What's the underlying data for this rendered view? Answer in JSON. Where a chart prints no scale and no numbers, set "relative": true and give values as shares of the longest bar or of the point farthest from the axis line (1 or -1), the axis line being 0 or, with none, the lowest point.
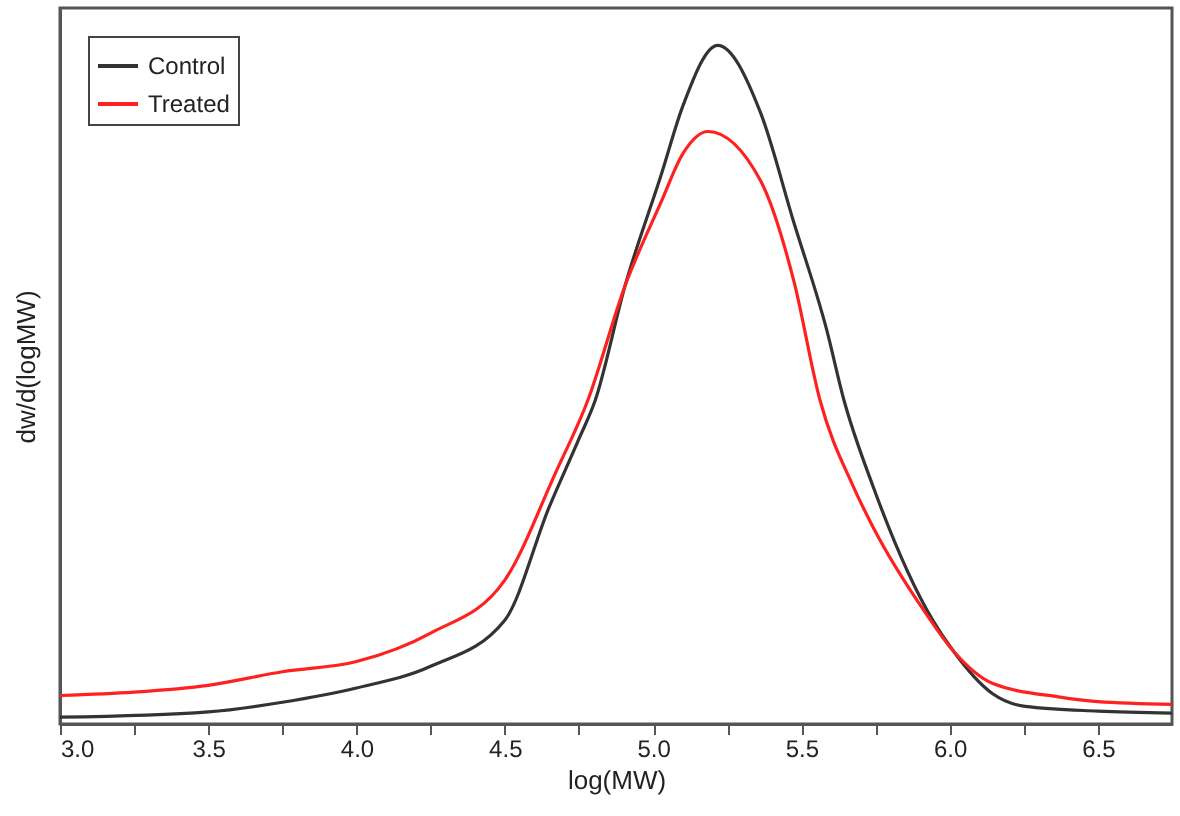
{
  "chart_data": {
    "type": "line",
    "relative": true,
    "xlabel": "log(MW)",
    "ylabel": "dw/d(logMW)",
    "xlim": [
      3,
      6.75
    ],
    "xticks": [
      {
        "value": 3,
        "label": "3.0"
      },
      {
        "value": 3.25,
        "label": null
      },
      {
        "value": 3.5,
        "label": "3.5"
      },
      {
        "value": 3.75,
        "label": null
      },
      {
        "value": 4,
        "label": "4.0"
      },
      {
        "value": 4.25,
        "label": null
      },
      {
        "value": 4.5,
        "label": "4.5"
      },
      {
        "value": 4.75,
        "label": null
      },
      {
        "value": 5,
        "label": "5.0"
      },
      {
        "value": 5.25,
        "label": null
      },
      {
        "value": 5.5,
        "label": "5.5"
      },
      {
        "value": 5.75,
        "label": null
      },
      {
        "value": 6,
        "label": "6.0"
      },
      {
        "value": 6.25,
        "label": null
      },
      {
        "value": 6.5,
        "label": "6.5"
      }
    ],
    "legend": "top left",
    "grid": false,
    "series": [
      {
        "name": "Control",
        "color": "#333333",
        "x": [
          3,
          3.5,
          3.75,
          4,
          4.25,
          4.5,
          4.65,
          4.75,
          4.805,
          4.905,
          5.028,
          5.1,
          5.218,
          5.363,
          5.474,
          5.586,
          5.642,
          5.742,
          5.943,
          6.01,
          6.144,
          6.255,
          6.5,
          6.75
        ],
        "values": [
          0.01,
          0.018,
          0.032,
          0.053,
          0.085,
          0.153,
          0.32,
          0.42,
          0.477,
          0.645,
          0.81,
          0.91,
          1,
          0.9,
          0.74,
          0.58,
          0.48,
          0.35,
          0.153,
          0.109,
          0.045,
          0.026,
          0.019,
          0.016
        ]
      },
      {
        "name": "Treated",
        "color": "#ff2020",
        "x": [
          3,
          3.25,
          3.5,
          3.75,
          4,
          4.25,
          4.5,
          4.67,
          4.78,
          4.905,
          5.028,
          5.1,
          5.185,
          5.363,
          5.474,
          5.563,
          5.675,
          5.742,
          5.92,
          6.01,
          6.144,
          6.367,
          6.5,
          6.75
        ],
        "values": [
          0.042,
          0.047,
          0.057,
          0.077,
          0.092,
          0.134,
          0.212,
          0.369,
          0.477,
          0.645,
          0.77,
          0.84,
          0.873,
          0.8,
          0.654,
          0.477,
          0.35,
          0.29,
          0.163,
          0.109,
          0.06,
          0.04,
          0.033,
          0.029
        ]
      }
    ]
  }
}
